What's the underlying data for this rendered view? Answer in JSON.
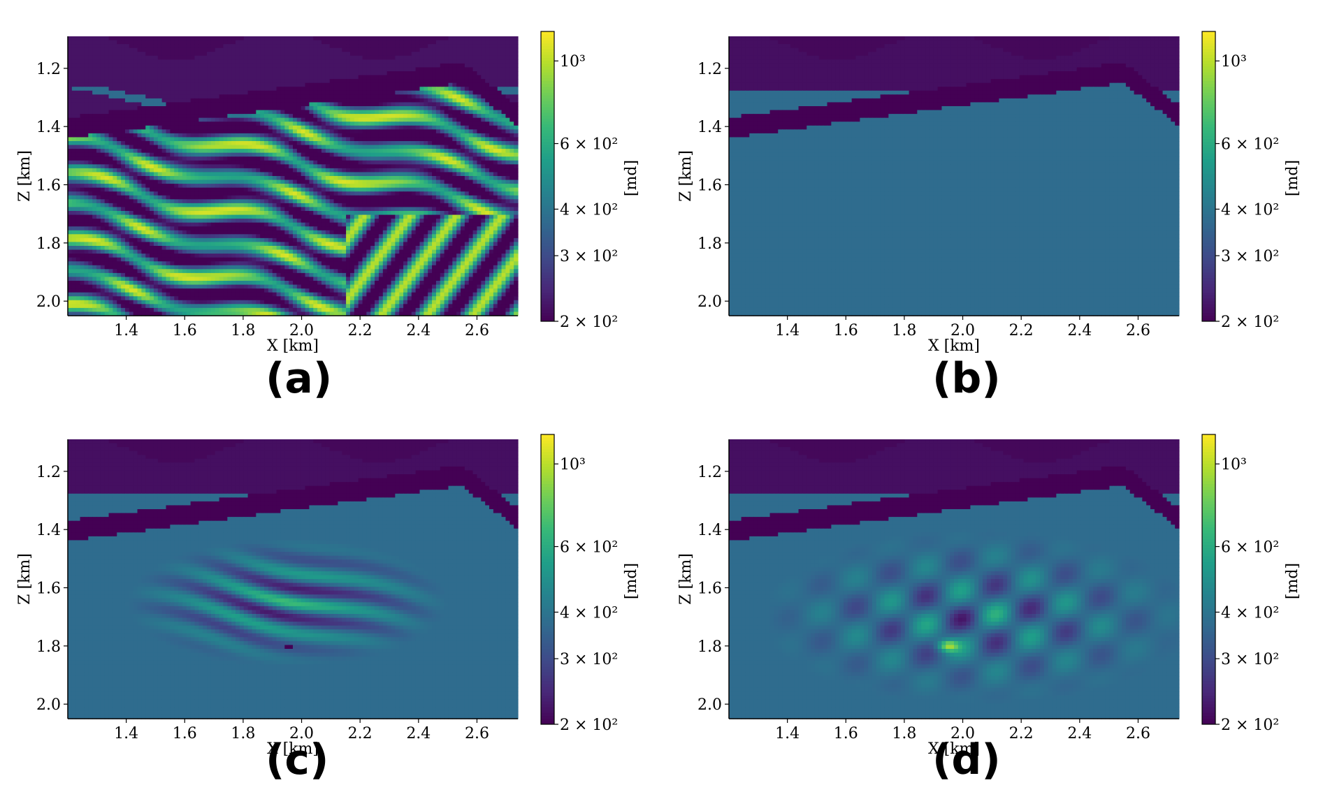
{
  "chart_data": [
    {
      "type": "heatmap",
      "panel_label": "(a)",
      "xlabel": "X [km]",
      "ylabel": "Z [km]",
      "xticks": [
        "1.4",
        "1.6",
        "1.8",
        "2.0",
        "2.2",
        "2.4",
        "2.6"
      ],
      "yticks": [
        "1.2",
        "1.4",
        "1.6",
        "1.8",
        "2.0"
      ],
      "xlim": [
        1.2,
        2.74
      ],
      "ylim": [
        2.05,
        1.09
      ],
      "colorbar": {
        "label": "[md]",
        "scale": "log",
        "range": [
          200,
          1200
        ],
        "ticks": [
          "2 × 10²",
          "3 × 10²",
          "4 × 10²",
          "6 × 10²",
          "10³"
        ]
      },
      "colormap": "viridis",
      "field": "layered"
    },
    {
      "type": "heatmap",
      "panel_label": "(b)",
      "xlabel": "X [km]",
      "ylabel": "Z [km]",
      "xticks": [
        "1.4",
        "1.6",
        "1.8",
        "2.0",
        "2.2",
        "2.4",
        "2.6"
      ],
      "yticks": [
        "1.2",
        "1.4",
        "1.6",
        "1.8",
        "2.0"
      ],
      "xlim": [
        1.2,
        2.74
      ],
      "ylim": [
        2.05,
        1.09
      ],
      "colorbar": {
        "label": "[md]",
        "scale": "log",
        "range": [
          200,
          1200
        ],
        "ticks": [
          "2 × 10²",
          "3 × 10²",
          "4 × 10²",
          "6 × 10²",
          "10³"
        ]
      },
      "colormap": "viridis",
      "field": "uniform"
    },
    {
      "type": "heatmap",
      "panel_label": "(c)",
      "xlabel": "X [km]",
      "ylabel": "Z [km]",
      "xticks": [
        "1.4",
        "1.6",
        "1.8",
        "2.0",
        "2.2",
        "2.4",
        "2.6"
      ],
      "yticks": [
        "1.2",
        "1.4",
        "1.6",
        "1.8",
        "2.0"
      ],
      "xlim": [
        1.2,
        2.74
      ],
      "ylim": [
        2.05,
        1.09
      ],
      "colorbar": {
        "label": "[md]",
        "scale": "log",
        "range": [
          200,
          1200
        ],
        "ticks": [
          "2 × 10²",
          "3 × 10²",
          "4 × 10²",
          "6 × 10²",
          "10³"
        ]
      },
      "colormap": "viridis",
      "field": "sharp-update"
    },
    {
      "type": "heatmap",
      "panel_label": "(d)",
      "xlabel": "X [km]",
      "ylabel": "Z [km]",
      "xticks": [
        "1.4",
        "1.6",
        "1.8",
        "2.0",
        "2.2",
        "2.4",
        "2.6"
      ],
      "yticks": [
        "1.2",
        "1.4",
        "1.6",
        "1.8",
        "2.0"
      ],
      "xlim": [
        1.2,
        2.74
      ],
      "ylim": [
        2.05,
        1.09
      ],
      "colorbar": {
        "label": "[md]",
        "scale": "log",
        "range": [
          200,
          1200
        ],
        "ticks": [
          "2 × 10²",
          "3 × 10²",
          "4 × 10²",
          "6 × 10²",
          "10³"
        ]
      },
      "colormap": "viridis",
      "field": "smooth-update"
    }
  ]
}
